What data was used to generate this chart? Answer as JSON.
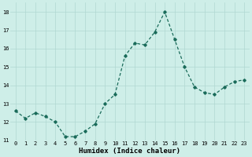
{
  "x": [
    0,
    1,
    2,
    3,
    4,
    5,
    6,
    7,
    8,
    9,
    10,
    11,
    12,
    13,
    14,
    15,
    16,
    17,
    18,
    19,
    20,
    21,
    22,
    23
  ],
  "y": [
    12.6,
    12.2,
    12.5,
    12.3,
    12.0,
    11.2,
    11.2,
    11.5,
    11.9,
    13.0,
    13.5,
    15.6,
    16.3,
    16.2,
    16.9,
    18.0,
    16.5,
    15.0,
    13.9,
    13.6,
    13.5,
    13.9,
    14.2,
    14.3
  ],
  "line_color": "#1a6b5a",
  "marker": "D",
  "marker_size": 1.8,
  "linewidth": 0.9,
  "bg_color": "#ceeee8",
  "grid_color": "#b0d8d2",
  "xlabel": "Humidex (Indice chaleur)",
  "ylim": [
    11,
    18.5
  ],
  "xlim": [
    -0.5,
    23.5
  ],
  "yticks": [
    11,
    12,
    13,
    14,
    15,
    16,
    17,
    18
  ],
  "xticks": [
    0,
    1,
    2,
    3,
    4,
    5,
    6,
    7,
    8,
    9,
    10,
    11,
    12,
    13,
    14,
    15,
    16,
    17,
    18,
    19,
    20,
    21,
    22,
    23
  ],
  "tick_fontsize": 5.0,
  "xlabel_fontsize": 6.5,
  "font_family": "monospace"
}
